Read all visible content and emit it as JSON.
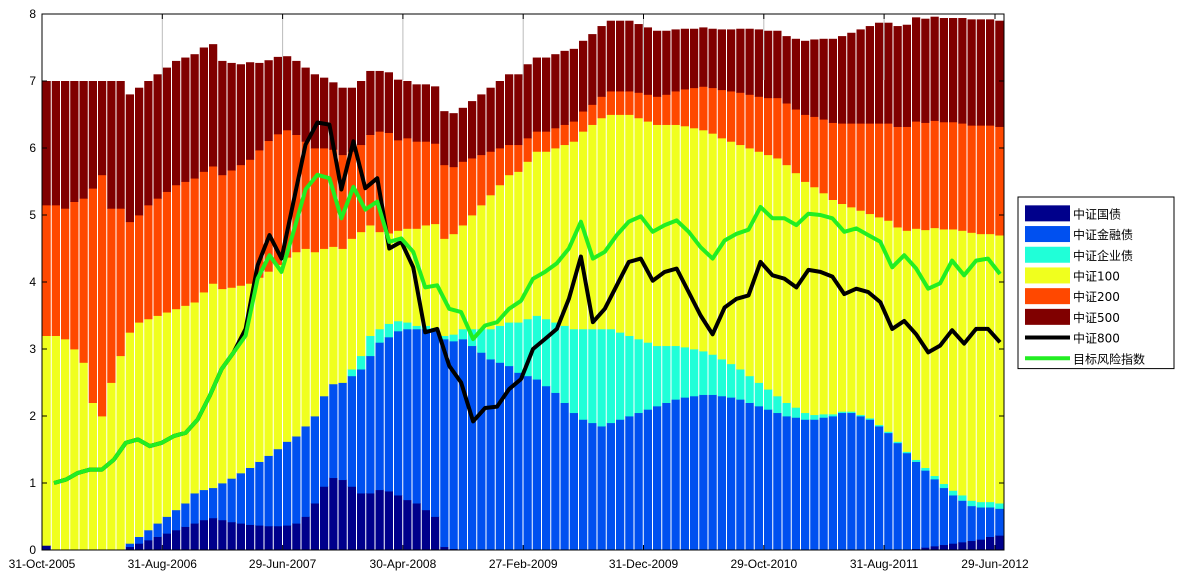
{
  "chart_data": {
    "type": "area",
    "title": "",
    "xlabel": "",
    "ylabel": "",
    "ylim": [
      0,
      8
    ],
    "y_ticks": [
      0,
      1,
      2,
      3,
      4,
      5,
      6,
      7,
      8
    ],
    "x_tick_labels": [
      "31-Oct-2005",
      "31-Aug-2006",
      "29-Jun-2007",
      "30-Apr-2008",
      "27-Feb-2009",
      "31-Dec-2009",
      "29-Oct-2010",
      "31-Aug-2011",
      "29-Jun-2012"
    ],
    "grid": "vertical lines only",
    "legend_position": "right",
    "stacked_series": [
      {
        "name": "中证国债",
        "color": "#00008B",
        "values": [
          0.07,
          0,
          0,
          0,
          0,
          0,
          0,
          0,
          0,
          0.05,
          0.1,
          0.15,
          0.2,
          0.25,
          0.3,
          0.35,
          0.4,
          0.45,
          0.48,
          0.45,
          0.42,
          0.4,
          0.38,
          0.37,
          0.36,
          0.36,
          0.37,
          0.4,
          0.5,
          0.7,
          0.95,
          1.08,
          1.05,
          0.95,
          0.85,
          0.85,
          0.9,
          0.88,
          0.82,
          0.75,
          0.7,
          0.6,
          0.5,
          0.05,
          0.02,
          0,
          0,
          0,
          0,
          0,
          0,
          0,
          0,
          0,
          0,
          0,
          0,
          0,
          0,
          0,
          0,
          0,
          0,
          0,
          0,
          0,
          0,
          0,
          0,
          0,
          0,
          0,
          0,
          0,
          0,
          0,
          0,
          0,
          0,
          0,
          0,
          0,
          0,
          0,
          0,
          0,
          0,
          0,
          0,
          0,
          0,
          0,
          0,
          0,
          0.02,
          0.04,
          0.06,
          0.08,
          0.1,
          0.12,
          0.14,
          0.16,
          0.2,
          0.22
        ]
      },
      {
        "name": "中证金融债",
        "color": "#0050F0",
        "values": [
          0,
          0,
          0,
          0,
          0,
          0,
          0,
          0,
          0,
          0.05,
          0.1,
          0.15,
          0.2,
          0.25,
          0.3,
          0.35,
          0.45,
          0.45,
          0.45,
          0.55,
          0.65,
          0.75,
          0.85,
          0.95,
          1.05,
          1.15,
          1.25,
          1.3,
          1.35,
          1.3,
          1.35,
          1.4,
          1.45,
          1.65,
          1.85,
          2.05,
          2.2,
          2.3,
          2.45,
          2.55,
          2.6,
          2.7,
          2.8,
          3.1,
          3.1,
          3.15,
          3.05,
          2.95,
          2.85,
          2.8,
          2.75,
          2.65,
          2.6,
          2.55,
          2.45,
          2.35,
          2.2,
          2.05,
          1.95,
          1.9,
          1.85,
          1.9,
          1.95,
          2.0,
          2.05,
          2.1,
          2.15,
          2.2,
          2.25,
          2.28,
          2.3,
          2.32,
          2.32,
          2.3,
          2.28,
          2.25,
          2.2,
          2.15,
          2.1,
          2.05,
          2.0,
          1.98,
          1.95,
          1.95,
          1.98,
          2.0,
          2.05,
          2.05,
          2.0,
          1.95,
          1.85,
          1.75,
          1.6,
          1.45,
          1.3,
          1.15,
          1.0,
          0.85,
          0.72,
          0.62,
          0.52,
          0.48,
          0.44,
          0.4,
          0.36
        ]
      },
      {
        "name": "中证企业债",
        "color": "#20FFD8",
        "values": [
          0,
          0,
          0,
          0,
          0,
          0,
          0,
          0,
          0,
          0,
          0,
          0,
          0,
          0,
          0,
          0,
          0,
          0,
          0,
          0,
          0,
          0,
          0,
          0,
          0,
          0,
          0,
          0,
          0,
          0,
          0,
          0,
          0,
          0.1,
          0.2,
          0.3,
          0.2,
          0.2,
          0.15,
          0.1,
          0.05,
          0.05,
          0.02,
          0.05,
          0.1,
          0.15,
          0.25,
          0.35,
          0.45,
          0.55,
          0.65,
          0.75,
          0.85,
          0.95,
          1.0,
          1.05,
          1.15,
          1.25,
          1.35,
          1.4,
          1.45,
          1.4,
          1.3,
          1.2,
          1.1,
          1.0,
          0.9,
          0.85,
          0.8,
          0.75,
          0.7,
          0.65,
          0.6,
          0.55,
          0.5,
          0.45,
          0.4,
          0.35,
          0.3,
          0.25,
          0.2,
          0.15,
          0.1,
          0.07,
          0.05,
          0.03,
          0.02,
          0.02,
          0.02,
          0.02,
          0.02,
          0.02,
          0.02,
          0.02,
          0.03,
          0.04,
          0.05,
          0.06,
          0.07,
          0.08,
          0.08,
          0.08,
          0.08,
          0.08,
          0.08
        ]
      },
      {
        "name": "中证100",
        "color": "#F0FF1E",
        "values": [
          3.13,
          3.2,
          3.15,
          3.0,
          2.8,
          2.2,
          2.0,
          2.5,
          2.9,
          3.15,
          3.2,
          3.15,
          3.1,
          3.05,
          3.0,
          2.95,
          2.85,
          2.95,
          3.05,
          2.9,
          2.85,
          2.8,
          2.75,
          2.75,
          2.75,
          2.75,
          2.75,
          2.75,
          2.65,
          2.45,
          2.2,
          2.05,
          2.0,
          1.95,
          1.85,
          1.65,
          1.45,
          1.35,
          1.35,
          1.4,
          1.45,
          1.5,
          1.55,
          1.45,
          1.5,
          1.55,
          1.7,
          1.85,
          2.0,
          2.1,
          2.2,
          2.25,
          2.35,
          2.45,
          2.5,
          2.6,
          2.7,
          2.8,
          2.95,
          3.05,
          3.15,
          3.2,
          3.25,
          3.3,
          3.3,
          3.3,
          3.3,
          3.3,
          3.3,
          3.3,
          3.3,
          3.3,
          3.3,
          3.3,
          3.32,
          3.35,
          3.4,
          3.45,
          3.5,
          3.55,
          3.55,
          3.5,
          3.45,
          3.4,
          3.3,
          3.2,
          3.1,
          3.05,
          3.05,
          3.05,
          3.1,
          3.15,
          3.2,
          3.3,
          3.45,
          3.55,
          3.7,
          3.8,
          3.9,
          3.95,
          4.0,
          4.0,
          4.0,
          4.0,
          3.96
        ]
      },
      {
        "name": "中证200",
        "color": "#FF4800",
        "values": [
          1.95,
          1.95,
          1.95,
          2.2,
          2.45,
          3.2,
          3.6,
          2.6,
          2.2,
          1.65,
          1.6,
          1.7,
          1.75,
          1.8,
          1.85,
          1.85,
          1.85,
          1.8,
          1.75,
          1.7,
          1.75,
          1.8,
          1.85,
          1.9,
          1.95,
          1.95,
          1.9,
          1.75,
          1.6,
          1.55,
          1.5,
          1.45,
          1.4,
          1.3,
          1.3,
          1.35,
          1.5,
          1.5,
          1.35,
          1.35,
          1.3,
          1.25,
          1.2,
          1.1,
          1.0,
          0.95,
          0.85,
          0.75,
          0.65,
          0.55,
          0.45,
          0.4,
          0.35,
          0.3,
          0.3,
          0.3,
          0.3,
          0.3,
          0.3,
          0.3,
          0.32,
          0.35,
          0.35,
          0.35,
          0.38,
          0.4,
          0.42,
          0.45,
          0.5,
          0.55,
          0.6,
          0.65,
          0.68,
          0.72,
          0.75,
          0.78,
          0.8,
          0.82,
          0.85,
          0.9,
          0.92,
          0.95,
          1.0,
          1.05,
          1.1,
          1.15,
          1.2,
          1.25,
          1.3,
          1.35,
          1.4,
          1.45,
          1.5,
          1.55,
          1.6,
          1.6,
          1.6,
          1.6,
          1.6,
          1.6,
          1.6,
          1.62,
          1.62,
          1.62,
          1.62
        ]
      },
      {
        "name": "中证500",
        "color": "#800000",
        "values": [
          1.85,
          1.85,
          1.9,
          1.8,
          1.75,
          1.6,
          1.4,
          1.9,
          1.9,
          1.9,
          1.9,
          1.85,
          1.85,
          1.85,
          1.85,
          1.85,
          1.85,
          1.85,
          1.82,
          1.7,
          1.6,
          1.5,
          1.45,
          1.3,
          1.2,
          1.15,
          1.1,
          1.1,
          1.1,
          1.1,
          1.05,
          1.0,
          1.0,
          0.95,
          0.95,
          0.95,
          0.9,
          0.9,
          0.9,
          0.85,
          0.85,
          0.85,
          0.85,
          0.8,
          0.8,
          0.8,
          0.85,
          0.9,
          0.95,
          1.0,
          1.05,
          1.05,
          1.1,
          1.1,
          1.1,
          1.1,
          1.1,
          1.08,
          1.05,
          1.05,
          1.05,
          1.05,
          1.05,
          1.05,
          1.02,
          1.0,
          0.98,
          0.95,
          0.92,
          0.9,
          0.88,
          0.88,
          0.88,
          0.9,
          0.92,
          0.95,
          0.98,
          1.0,
          1.0,
          1.0,
          1.0,
          1.05,
          1.1,
          1.15,
          1.2,
          1.25,
          1.3,
          1.35,
          1.4,
          1.45,
          1.5,
          1.5,
          1.5,
          1.52,
          1.55,
          1.55,
          1.55,
          1.55,
          1.55,
          1.57,
          1.58,
          1.58,
          1.58,
          1.58,
          1.6
        ]
      }
    ],
    "line_series": [
      {
        "name": "中证800",
        "color": "#000000",
        "values": [
          1.0,
          1.05,
          1.15,
          1.2,
          1.2,
          1.35,
          1.6,
          1.65,
          1.55,
          1.6,
          1.7,
          1.75,
          1.95,
          2.3,
          2.7,
          2.95,
          3.3,
          4.25,
          4.7,
          4.35,
          5.2,
          6.05,
          6.38,
          6.35,
          5.38,
          6.1,
          5.4,
          5.55,
          4.5,
          4.6,
          4.22,
          3.25,
          3.3,
          2.75,
          2.5,
          1.92,
          2.12,
          2.14,
          2.4,
          2.55,
          3.0,
          3.15,
          3.3,
          3.75,
          4.38,
          3.4,
          3.6,
          3.95,
          4.3,
          4.35,
          4.02,
          4.15,
          4.2,
          3.85,
          3.5,
          3.22,
          3.62,
          3.75,
          3.8,
          4.3,
          4.1,
          4.05,
          3.92,
          4.18,
          4.15,
          4.08,
          3.82,
          3.9,
          3.85,
          3.7,
          3.3,
          3.42,
          3.22,
          2.95,
          3.05,
          3.28,
          3.08,
          3.3,
          3.3,
          3.1
        ]
      },
      {
        "name": "目标风险指数",
        "color": "#22EE22",
        "values": [
          1.0,
          1.05,
          1.15,
          1.2,
          1.2,
          1.35,
          1.6,
          1.65,
          1.55,
          1.6,
          1.7,
          1.75,
          1.95,
          2.3,
          2.7,
          2.95,
          3.2,
          4.05,
          4.4,
          4.15,
          4.75,
          5.38,
          5.6,
          5.55,
          4.95,
          5.42,
          5.08,
          5.2,
          4.6,
          4.65,
          4.45,
          3.92,
          3.95,
          3.6,
          3.55,
          3.15,
          3.35,
          3.4,
          3.6,
          3.72,
          4.05,
          4.15,
          4.28,
          4.5,
          4.9,
          4.35,
          4.45,
          4.7,
          4.9,
          4.98,
          4.75,
          4.85,
          4.92,
          4.75,
          4.52,
          4.35,
          4.62,
          4.72,
          4.78,
          5.12,
          4.95,
          4.95,
          4.85,
          5.02,
          5.0,
          4.95,
          4.75,
          4.8,
          4.7,
          4.6,
          4.22,
          4.4,
          4.2,
          3.9,
          3.98,
          4.32,
          4.1,
          4.32,
          4.35,
          4.12
        ]
      }
    ]
  }
}
